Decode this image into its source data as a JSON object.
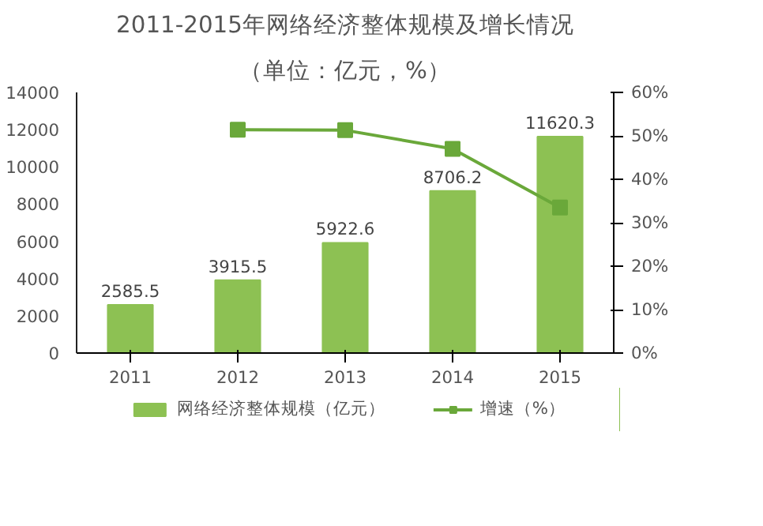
{
  "chart_data": {
    "type": "bar",
    "title": "2011-2015年网络经济整体规模及增长情况",
    "subtitle": "（单位：亿元，%）",
    "categories": [
      "2011",
      "2012",
      "2013",
      "2014",
      "2015"
    ],
    "series": [
      {
        "name": "网络经济整体规模（亿元）",
        "color": "#8dc153",
        "values": [
          2585.5,
          3915.5,
          5922.6,
          8706.2,
          11620.3
        ],
        "value_labels": [
          "2585.5",
          "3915.5",
          "5922.6",
          "8706.2",
          "11620.3"
        ]
      },
      {
        "name": "增速（%）",
        "type": "line",
        "axis": "y2",
        "color": "#6aa83a",
        "marker": "square",
        "values": [
          null,
          51.4,
          51.3,
          47.0,
          33.5
        ]
      }
    ],
    "ylim": [
      0,
      14000
    ],
    "yticks": [
      0,
      2000,
      4000,
      6000,
      8000,
      10000,
      12000,
      14000
    ],
    "y2lim": [
      0,
      60
    ],
    "y2ticks": [
      {
        "value": 0,
        "label": "0%"
      },
      {
        "value": 10,
        "label": "10%"
      },
      {
        "value": 20,
        "label": "20%"
      },
      {
        "value": 30,
        "label": "30%"
      },
      {
        "value": 40,
        "label": "40%"
      },
      {
        "value": 50,
        "label": "50%"
      },
      {
        "value": 60,
        "label": "60%"
      }
    ],
    "grid": false,
    "legend": "bottom"
  }
}
